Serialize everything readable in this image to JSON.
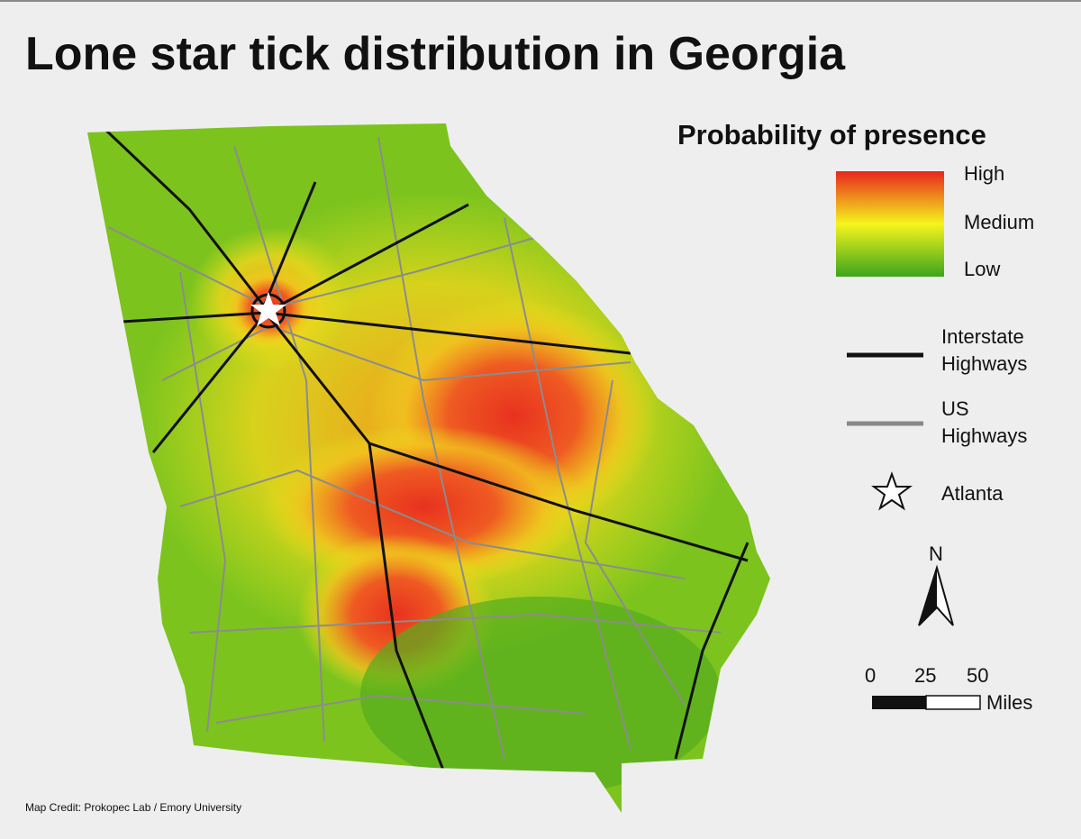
{
  "title": "Lone star tick distribution in Georgia",
  "legend": {
    "title": "Probability of presence",
    "scale": [
      "High",
      "Medium",
      "Low"
    ],
    "interstate": "Interstate Highways",
    "us_highways": "US Highways",
    "city": "Atlanta"
  },
  "north": "N",
  "scale_bar": {
    "ticks": [
      0,
      25,
      50
    ],
    "unit": "Miles"
  },
  "credit": "Map Credit: Prokopec Lab / Emory University"
}
